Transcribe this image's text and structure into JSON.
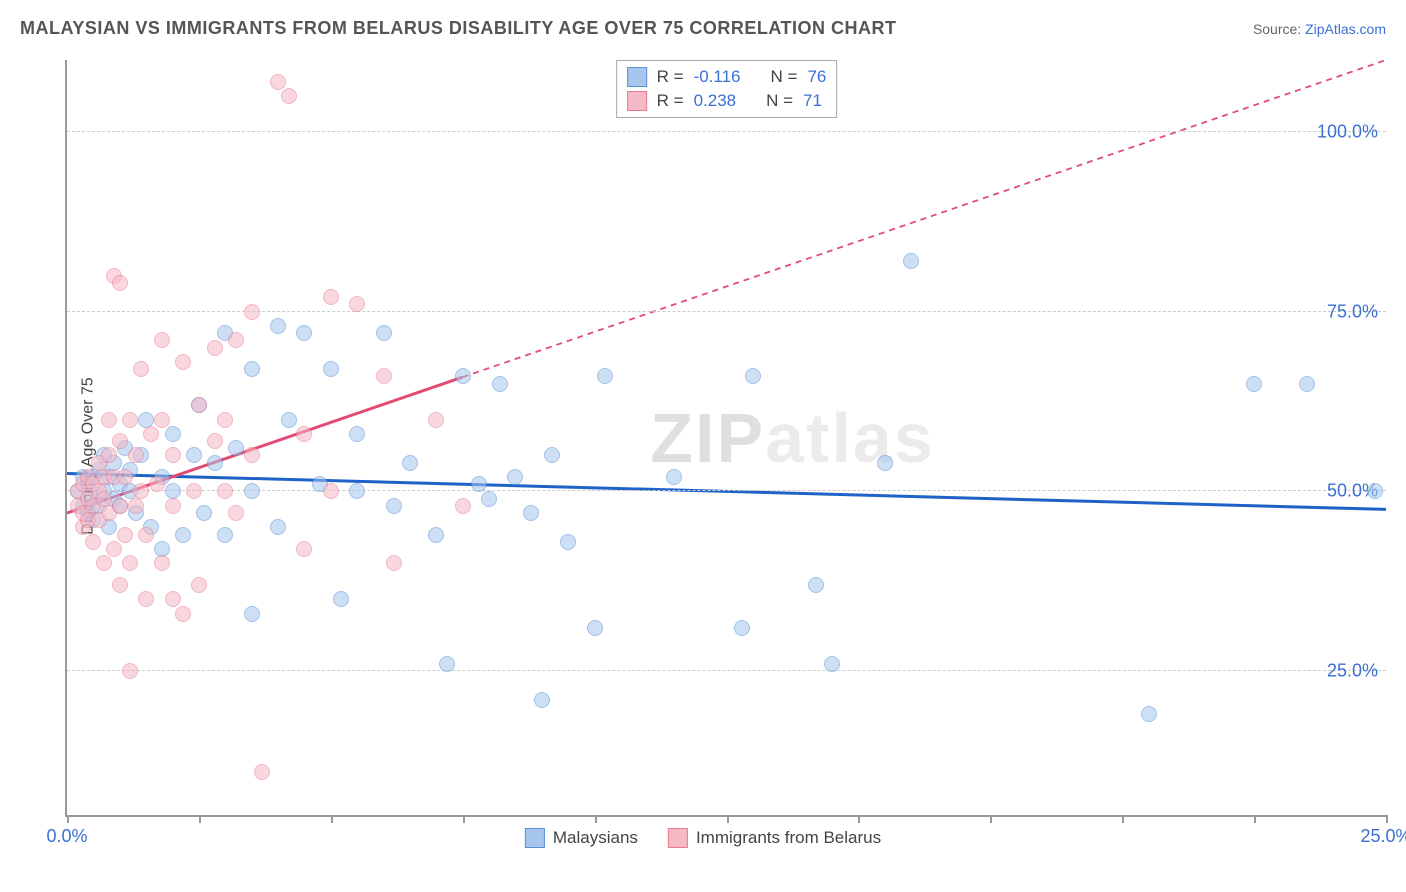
{
  "header": {
    "title": "MALAYSIAN VS IMMIGRANTS FROM BELARUS DISABILITY AGE OVER 75 CORRELATION CHART",
    "source_prefix": "Source: ",
    "source_link": "ZipAtlas.com"
  },
  "chart": {
    "type": "scatter",
    "ylabel": "Disability Age Over 75",
    "xlim": [
      0,
      25
    ],
    "ylim": [
      5,
      110
    ],
    "ytick_values": [
      25,
      50,
      75,
      100
    ],
    "ytick_labels": [
      "25.0%",
      "50.0%",
      "75.0%",
      "100.0%"
    ],
    "xtick_values": [
      0,
      2.5,
      5,
      7.5,
      10,
      12.5,
      15,
      17.5,
      20,
      22.5,
      25
    ],
    "xtick_labels": {
      "0": "0.0%",
      "25": "25.0%"
    },
    "background_color": "#ffffff",
    "grid_color": "#cccccc",
    "axis_color": "#999999",
    "marker_radius": 8,
    "marker_opacity": 0.55,
    "watermark": "ZIPatlas",
    "series": [
      {
        "name": "Malaysians",
        "color_fill": "#a6c6ee",
        "color_stroke": "#5b8fd6",
        "trend_color": "#1f63c9",
        "trend_width": 3,
        "trend_dash_extrapolate": "6,5",
        "R": "-0.116",
        "N": "76",
        "trend": {
          "x1": 0,
          "y1": 52.5,
          "x2": 25,
          "y2": 47.5,
          "x_solid_end": 25
        },
        "points": [
          [
            0.2,
            50
          ],
          [
            0.3,
            48
          ],
          [
            0.3,
            52
          ],
          [
            0.4,
            47
          ],
          [
            0.4,
            51
          ],
          [
            0.5,
            49
          ],
          [
            0.5,
            52
          ],
          [
            0.5,
            46
          ],
          [
            0.6,
            53
          ],
          [
            0.6,
            48
          ],
          [
            0.7,
            50
          ],
          [
            0.7,
            55
          ],
          [
            0.8,
            45
          ],
          [
            0.8,
            52
          ],
          [
            0.9,
            54
          ],
          [
            0.9,
            49
          ],
          [
            1.0,
            48
          ],
          [
            1.0,
            51
          ],
          [
            1.1,
            56
          ],
          [
            1.2,
            50
          ],
          [
            1.2,
            53
          ],
          [
            1.3,
            47
          ],
          [
            1.4,
            55
          ],
          [
            1.5,
            60
          ],
          [
            1.6,
            45
          ],
          [
            1.8,
            52
          ],
          [
            1.8,
            42
          ],
          [
            2.0,
            50
          ],
          [
            2.0,
            58
          ],
          [
            2.2,
            44
          ],
          [
            2.4,
            55
          ],
          [
            2.5,
            62
          ],
          [
            2.6,
            47
          ],
          [
            2.8,
            54
          ],
          [
            3.0,
            72
          ],
          [
            3.0,
            44
          ],
          [
            3.2,
            56
          ],
          [
            3.5,
            67
          ],
          [
            3.5,
            33
          ],
          [
            3.5,
            50
          ],
          [
            4.0,
            73
          ],
          [
            4.0,
            45
          ],
          [
            4.2,
            60
          ],
          [
            4.5,
            72
          ],
          [
            4.8,
            51
          ],
          [
            5.0,
            67
          ],
          [
            5.2,
            35
          ],
          [
            5.5,
            50
          ],
          [
            5.5,
            58
          ],
          [
            6.0,
            72
          ],
          [
            6.2,
            48
          ],
          [
            6.5,
            54
          ],
          [
            7.0,
            44
          ],
          [
            7.2,
            26
          ],
          [
            7.5,
            66
          ],
          [
            7.8,
            51
          ],
          [
            8.0,
            49
          ],
          [
            8.2,
            65
          ],
          [
            8.5,
            52
          ],
          [
            8.8,
            47
          ],
          [
            9.0,
            21
          ],
          [
            9.2,
            55
          ],
          [
            9.5,
            43
          ],
          [
            10.0,
            31
          ],
          [
            10.2,
            66
          ],
          [
            11.5,
            52
          ],
          [
            12.8,
            31
          ],
          [
            13.0,
            66
          ],
          [
            14.2,
            37
          ],
          [
            14.5,
            26
          ],
          [
            15.5,
            54
          ],
          [
            16.0,
            82
          ],
          [
            20.5,
            19
          ],
          [
            22.5,
            65
          ],
          [
            23.5,
            65
          ],
          [
            24.8,
            50
          ]
        ]
      },
      {
        "name": "Immigrants from Belarus",
        "color_fill": "#f5b8c5",
        "color_stroke": "#e87b93",
        "trend_color": "#e24c73",
        "trend_width": 3,
        "trend_dash_extrapolate": "6,5",
        "R": "0.238",
        "N": "71",
        "trend": {
          "x1": 0,
          "y1": 47,
          "x2": 25,
          "y2": 110,
          "x_solid_end": 7.5
        },
        "points": [
          [
            0.2,
            48
          ],
          [
            0.2,
            50
          ],
          [
            0.3,
            47
          ],
          [
            0.3,
            51
          ],
          [
            0.3,
            45
          ],
          [
            0.4,
            49
          ],
          [
            0.4,
            52
          ],
          [
            0.4,
            46
          ],
          [
            0.5,
            48
          ],
          [
            0.5,
            51
          ],
          [
            0.5,
            43
          ],
          [
            0.6,
            50
          ],
          [
            0.6,
            54
          ],
          [
            0.6,
            46
          ],
          [
            0.7,
            49
          ],
          [
            0.7,
            52
          ],
          [
            0.7,
            40
          ],
          [
            0.8,
            47
          ],
          [
            0.8,
            55
          ],
          [
            0.8,
            60
          ],
          [
            0.9,
            52
          ],
          [
            0.9,
            42
          ],
          [
            0.9,
            80
          ],
          [
            1.0,
            48
          ],
          [
            1.0,
            57
          ],
          [
            1.0,
            37
          ],
          [
            1.0,
            79
          ],
          [
            1.1,
            52
          ],
          [
            1.1,
            44
          ],
          [
            1.2,
            60
          ],
          [
            1.2,
            40
          ],
          [
            1.2,
            25
          ],
          [
            1.3,
            55
          ],
          [
            1.3,
            48
          ],
          [
            1.4,
            50
          ],
          [
            1.4,
            67
          ],
          [
            1.5,
            44
          ],
          [
            1.5,
            35
          ],
          [
            1.6,
            58
          ],
          [
            1.7,
            51
          ],
          [
            1.8,
            60
          ],
          [
            1.8,
            40
          ],
          [
            1.8,
            71
          ],
          [
            2.0,
            48
          ],
          [
            2.0,
            55
          ],
          [
            2.0,
            35
          ],
          [
            2.2,
            68
          ],
          [
            2.2,
            33
          ],
          [
            2.4,
            50
          ],
          [
            2.5,
            62
          ],
          [
            2.5,
            37
          ],
          [
            2.8,
            57
          ],
          [
            2.8,
            70
          ],
          [
            3.0,
            50
          ],
          [
            3.0,
            60
          ],
          [
            3.2,
            71
          ],
          [
            3.2,
            47
          ],
          [
            3.5,
            55
          ],
          [
            3.5,
            75
          ],
          [
            3.7,
            11
          ],
          [
            4.0,
            107
          ],
          [
            4.2,
            105
          ],
          [
            4.5,
            42
          ],
          [
            4.5,
            58
          ],
          [
            5.0,
            50
          ],
          [
            5.0,
            77
          ],
          [
            5.5,
            76
          ],
          [
            6.0,
            66
          ],
          [
            6.2,
            40
          ],
          [
            7.0,
            60
          ],
          [
            7.5,
            48
          ]
        ]
      }
    ],
    "stats_labels": {
      "R": "R =",
      "N": "N ="
    }
  },
  "legend": {
    "items": [
      {
        "label": "Malaysians",
        "fill": "#a6c6ee",
        "stroke": "#5b8fd6"
      },
      {
        "label": "Immigrants from Belarus",
        "fill": "#f5b8c5",
        "stroke": "#e87b93"
      }
    ]
  }
}
